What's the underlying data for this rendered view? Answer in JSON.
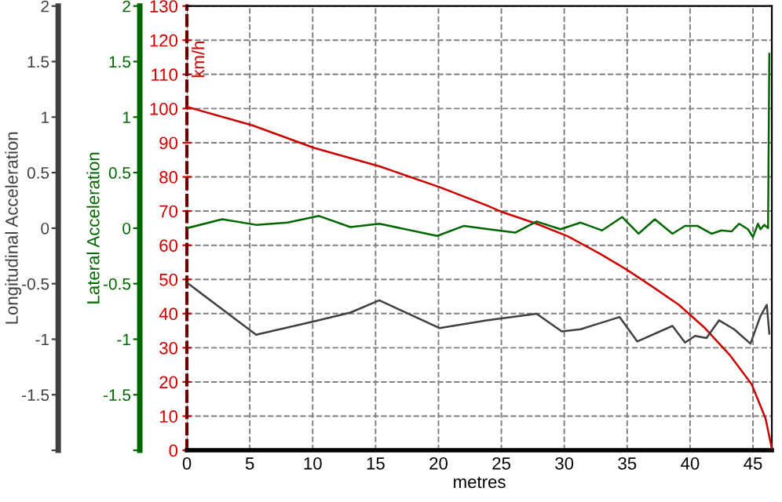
{
  "chart_data": {
    "type": "line",
    "xlabel": "metres",
    "ylabel": "km/h",
    "y2label": "Lateral Acceleration",
    "y3label": "Longitudinal Acceleration",
    "xlim": [
      0,
      46.5
    ],
    "xticks": [
      0,
      5,
      10,
      15,
      20,
      25,
      30,
      35,
      40,
      45
    ],
    "ylim": [
      0,
      130
    ],
    "yticks": [
      0,
      10,
      20,
      30,
      40,
      50,
      60,
      70,
      80,
      90,
      100,
      110,
      120,
      130
    ],
    "y2lim": [
      -2,
      2
    ],
    "y2ticks": [
      {
        "value": -2,
        "label": null
      },
      -1.5,
      -1,
      -0.5,
      0,
      0.5,
      1,
      1.5,
      2
    ],
    "y3lim": [
      -2,
      2
    ],
    "y3ticks": [
      {
        "value": -2,
        "label": null
      },
      -1.5,
      -1,
      -0.5,
      0,
      0.5,
      1,
      1.5,
      2
    ],
    "grid": true,
    "legend": false,
    "line_style": "solid",
    "marker": "none",
    "series": [
      {
        "axis": "y",
        "color": "#cc0000",
        "x": [
          0,
          5.2,
          10.1,
          15.3,
          20.1,
          23.8,
          25,
          27.8,
          30.3,
          32.8,
          34.9,
          37,
          39.1,
          41.2,
          43.2,
          44.9,
          46,
          46.5
        ],
        "values": [
          100.5,
          95.1,
          88.5,
          83.1,
          77.0,
          71.7,
          69.8,
          66.3,
          62.6,
          57.6,
          53.0,
          47.9,
          42.6,
          35.7,
          27.7,
          19.3,
          9.3,
          0.5
        ]
      },
      {
        "axis": "y2",
        "color": "#006600",
        "x": [
          0,
          2.8,
          5.5,
          8.0,
          10.5,
          13,
          15.3,
          19.9,
          22,
          24,
          26.1,
          27.8,
          29.7,
          31.3,
          33,
          34.6,
          35.9,
          37.2,
          38.6,
          39.6,
          40.6,
          41.7,
          42.5,
          43.3,
          43.9,
          44.6,
          45,
          45.4,
          45.6,
          45.9,
          46.2,
          46.3
        ],
        "values": [
          0.0,
          0.08,
          0.03,
          0.05,
          0.11,
          0.01,
          0.04,
          -0.07,
          0.02,
          -0.01,
          -0.04,
          0.06,
          -0.01,
          0.05,
          -0.02,
          0.1,
          -0.05,
          0.08,
          -0.05,
          0.02,
          0.02,
          -0.05,
          -0.02,
          -0.03,
          0.04,
          -0.01,
          -0.08,
          0.04,
          -0.01,
          0.03,
          0.0,
          1.57
        ]
      },
      {
        "axis": "y3",
        "color": "#404040",
        "x": [
          0,
          5.5,
          10.1,
          13,
          15.3,
          20.1,
          23.8,
          27.8,
          29.8,
          31.3,
          34.4,
          35.8,
          38.6,
          39.6,
          40.4,
          41.3,
          42.3,
          43.5,
          44.8,
          45.6,
          46.1,
          46.3
        ],
        "values": [
          -0.49,
          -0.96,
          -0.84,
          -0.76,
          -0.65,
          -0.9,
          -0.83,
          -0.77,
          -0.93,
          -0.91,
          -0.8,
          -1.02,
          -0.88,
          -1.03,
          -0.97,
          -0.99,
          -0.83,
          -0.91,
          -1.04,
          -0.79,
          -0.69,
          -0.95
        ]
      }
    ]
  }
}
